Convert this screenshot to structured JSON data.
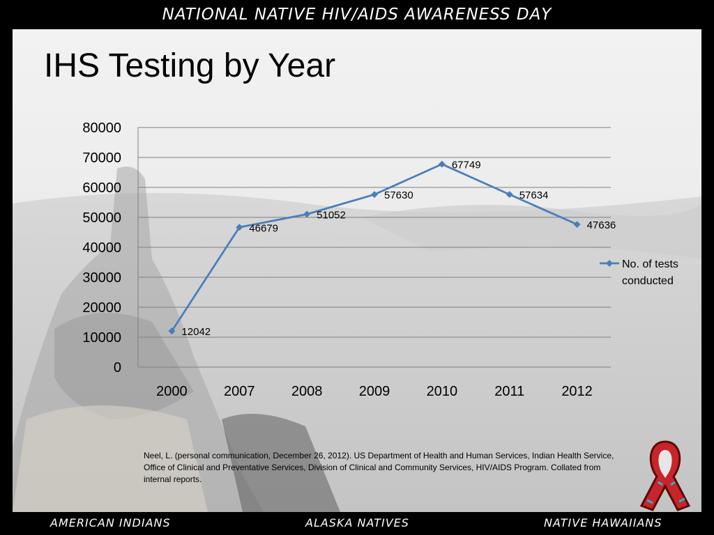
{
  "header": {
    "banner": "NATIONAL NATIVE HIV/AIDS AWARENESS DAY"
  },
  "slide": {
    "title": "IHS Testing by Year",
    "citation": "Neel, L. (personal communication, December 26, 2012). US Department of Health and Human Services, Indian Health Service, Office of Clinical and Preventative Services, Division of Clinical and Community Services, HIV/AIDS Program. Collated from internal reports."
  },
  "footer": {
    "left": "AMERICAN INDIANS",
    "center": "ALASKA NATIVES",
    "right": "NATIVE HAWAIIANS"
  },
  "colors": {
    "line": "#4a7ebb",
    "grid": "#7f7f7f"
  },
  "icons": {
    "ribbon": "red-awareness-ribbon-icon"
  },
  "chart_data": {
    "type": "line",
    "title": "",
    "xlabel": "",
    "ylabel": "",
    "categories": [
      "2000",
      "2007",
      "2008",
      "2009",
      "2010",
      "2011",
      "2012"
    ],
    "series": [
      {
        "name": "No. of tests conducted",
        "values": [
          12042,
          46679,
          51052,
          57630,
          67749,
          57634,
          47636
        ]
      }
    ],
    "ylim": [
      0,
      80000
    ],
    "yticks": [
      0,
      10000,
      20000,
      30000,
      40000,
      50000,
      60000,
      70000,
      80000
    ],
    "grid": true,
    "legend_position": "right",
    "data_labels": true
  }
}
